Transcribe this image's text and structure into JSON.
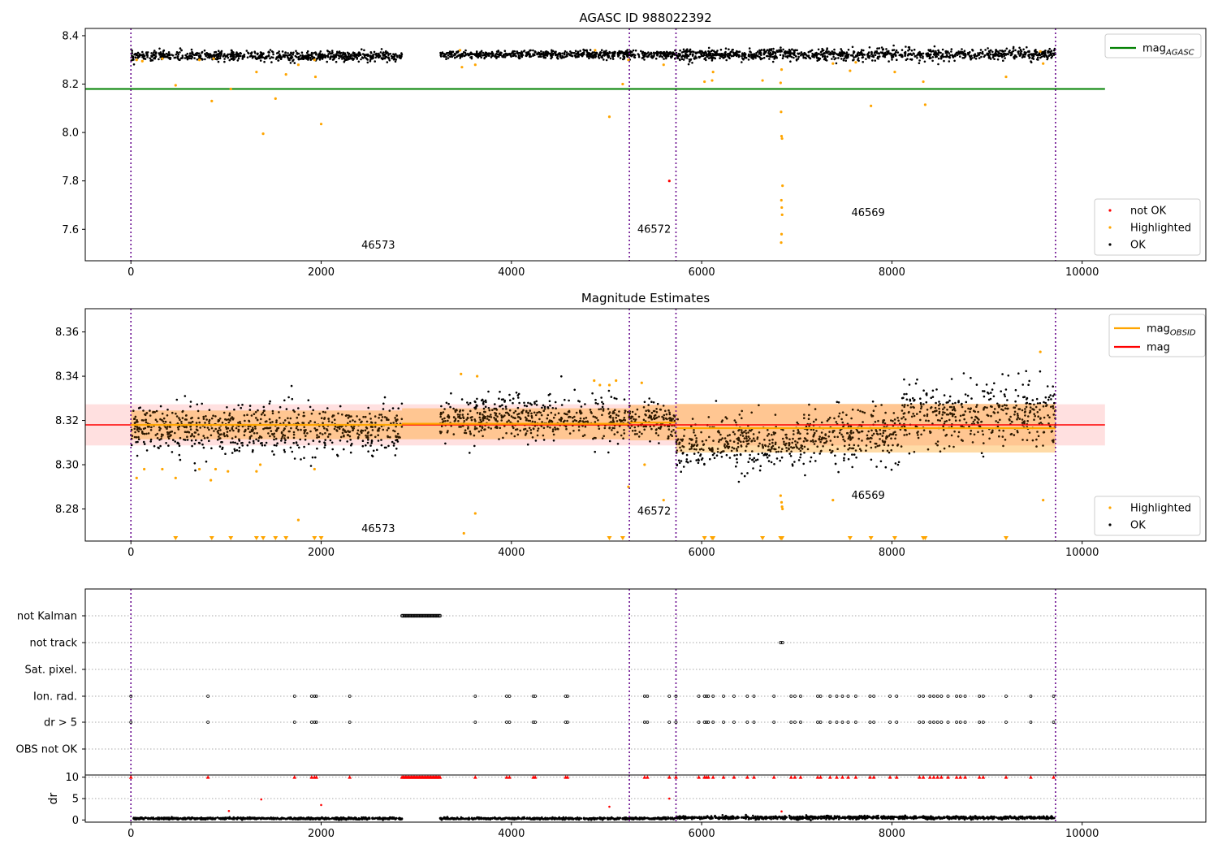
{
  "chart_data": [
    {
      "type": "scatter",
      "title": "AGASC ID 988022392",
      "xlim": [
        -480,
        11300
      ],
      "ylim": [
        7.47,
        8.43
      ],
      "xticks": [
        0,
        2000,
        4000,
        6000,
        8000,
        10000
      ],
      "yticks": [
        7.6,
        7.8,
        8.0,
        8.2,
        8.4
      ],
      "ytick_labels": [
        "7.6",
        "7.8",
        "8.0",
        "8.2",
        "8.4"
      ],
      "obsid_boundaries": [
        0,
        5240,
        5730,
        9720
      ],
      "obsid_labels": [
        {
          "text": "46573",
          "x": 2600,
          "y": 7.52
        },
        {
          "text": "46572",
          "x": 5500,
          "y": 7.585
        },
        {
          "text": "46569",
          "x": 7750,
          "y": 7.655
        }
      ],
      "ok_segments": [
        {
          "x": [
            0,
            2850
          ],
          "center": 8.316,
          "spread": 0.01
        },
        {
          "x": [
            3250,
            5730
          ],
          "center": 8.322,
          "spread": 0.008
        },
        {
          "x": [
            5730,
            9720
          ],
          "center": 8.322,
          "spread": 0.012
        }
      ],
      "highlighted": [
        [
          60,
          8.3
        ],
        [
          120,
          8.295
        ],
        [
          330,
          8.305
        ],
        [
          470,
          8.195
        ],
        [
          720,
          8.3
        ],
        [
          850,
          8.13
        ],
        [
          870,
          8.305
        ],
        [
          1050,
          8.18
        ],
        [
          1320,
          8.25
        ],
        [
          1390,
          7.995
        ],
        [
          1520,
          8.14
        ],
        [
          1630,
          8.24
        ],
        [
          1760,
          8.28
        ],
        [
          1930,
          8.3
        ],
        [
          1940,
          8.23
        ],
        [
          2000,
          8.035
        ],
        [
          3460,
          8.34
        ],
        [
          3480,
          8.27
        ],
        [
          3620,
          8.28
        ],
        [
          4880,
          8.34
        ],
        [
          5030,
          8.065
        ],
        [
          5170,
          8.2
        ],
        [
          5230,
          8.3
        ],
        [
          5600,
          8.28
        ],
        [
          6030,
          8.21
        ],
        [
          6110,
          8.215
        ],
        [
          6120,
          8.25
        ],
        [
          6640,
          8.215
        ],
        [
          6830,
          8.205
        ],
        [
          6840,
          8.26
        ],
        [
          6835,
          8.085
        ],
        [
          6840,
          7.985
        ],
        [
          6845,
          7.975
        ],
        [
          6850,
          7.78
        ],
        [
          6838,
          7.72
        ],
        [
          6842,
          7.69
        ],
        [
          6846,
          7.66
        ],
        [
          6840,
          7.58
        ],
        [
          6836,
          7.545
        ],
        [
          7380,
          8.285
        ],
        [
          7560,
          8.255
        ],
        [
          7620,
          8.29
        ],
        [
          7780,
          8.11
        ],
        [
          8030,
          8.25
        ],
        [
          8330,
          8.21
        ],
        [
          8350,
          8.115
        ],
        [
          9200,
          8.23
        ],
        [
          9560,
          8.335
        ],
        [
          9590,
          8.285
        ]
      ],
      "not_ok": [
        [
          5660,
          7.8
        ]
      ],
      "mag_agasc": {
        "value": 8.18,
        "x": [
          -480,
          10240
        ]
      },
      "legend_lines": [
        {
          "label": "mag",
          "sub": "AGASC",
          "color": "#008000"
        }
      ],
      "legend_points": [
        {
          "label": "not OK",
          "color": "#ff0000"
        },
        {
          "label": "Highlighted",
          "color": "#ffa500"
        },
        {
          "label": "OK",
          "color": "#000000"
        }
      ]
    },
    {
      "type": "scatter",
      "title": "Magnitude Estimates",
      "xlim": [
        -480,
        11300
      ],
      "ylim": [
        8.2655,
        8.3705
      ],
      "xticks": [
        0,
        2000,
        4000,
        6000,
        8000,
        10000
      ],
      "yticks": [
        8.28,
        8.3,
        8.32,
        8.34,
        8.36
      ],
      "ytick_labels": [
        "8.28",
        "8.30",
        "8.32",
        "8.34",
        "8.36"
      ],
      "obsid_boundaries": [
        0,
        5240,
        5730,
        9720
      ],
      "obsid_labels": [
        {
          "text": "46573",
          "x": 2600,
          "y": 8.2695
        },
        {
          "text": "46572",
          "x": 5500,
          "y": 8.2775
        },
        {
          "text": "46569",
          "x": 7750,
          "y": 8.2845
        }
      ],
      "ok_segments": [
        {
          "x": [
            0,
            2850
          ],
          "center": 8.316,
          "spread": 0.0055
        },
        {
          "x": [
            3250,
            5240
          ],
          "center": 8.321,
          "spread": 0.005
        },
        {
          "x": [
            5240,
            5730
          ],
          "center": 8.32,
          "spread": 0.004
        },
        {
          "x": [
            5730,
            7100
          ],
          "center": 8.309,
          "spread": 0.006
        },
        {
          "x": [
            7100,
            8100
          ],
          "center": 8.313,
          "spread": 0.006
        },
        {
          "x": [
            8100,
            9720
          ],
          "center": 8.323,
          "spread": 0.007
        }
      ],
      "highlighted": [
        [
          60,
          8.294
        ],
        [
          140,
          8.298
        ],
        [
          330,
          8.298
        ],
        [
          470,
          8.294
        ],
        [
          720,
          8.298
        ],
        [
          840,
          8.293
        ],
        [
          890,
          8.298
        ],
        [
          1020,
          8.297
        ],
        [
          1320,
          8.297
        ],
        [
          1360,
          8.3
        ],
        [
          1760,
          8.275
        ],
        [
          1930,
          8.298
        ],
        [
          3470,
          8.341
        ],
        [
          3500,
          8.269
        ],
        [
          3620,
          8.278
        ],
        [
          3640,
          8.34
        ],
        [
          4870,
          8.338
        ],
        [
          4930,
          8.336
        ],
        [
          5030,
          8.336
        ],
        [
          5100,
          8.338
        ],
        [
          5230,
          8.29
        ],
        [
          5370,
          8.337
        ],
        [
          5400,
          8.3
        ],
        [
          5600,
          8.284
        ],
        [
          6830,
          8.286
        ],
        [
          6840,
          8.283
        ],
        [
          6845,
          8.281
        ],
        [
          6850,
          8.28
        ],
        [
          7380,
          8.284
        ],
        [
          9560,
          8.351
        ],
        [
          9590,
          8.284
        ]
      ],
      "below_markers": [
        470,
        850,
        1050,
        1320,
        1390,
        1520,
        1630,
        1930,
        2000,
        5030,
        5170,
        6030,
        6110,
        6120,
        6640,
        6830,
        6840,
        6845,
        7560,
        7780,
        8030,
        8330,
        8350,
        9200
      ],
      "obsid_mags": [
        {
          "x": [
            0,
            2850
          ],
          "mean": 8.318,
          "std": 0.0065
        },
        {
          "x": [
            2850,
            5240
          ],
          "mean": 8.3185,
          "std": 0.007
        },
        {
          "x": [
            5240,
            5730
          ],
          "mean": 8.319,
          "std": 0.008
        },
        {
          "x": [
            5730,
            9720
          ],
          "mean": 8.3165,
          "std": 0.011
        }
      ],
      "mag": {
        "value": 8.318,
        "std": 0.0093,
        "x": [
          -480,
          10240
        ]
      },
      "legend_lines": [
        {
          "label": "mag",
          "sub": "OBSID",
          "color": "#ffa500"
        },
        {
          "label": "mag",
          "sub": "",
          "color": "#ff0000"
        }
      ],
      "legend_points": [
        {
          "label": "Highlighted",
          "color": "#ffa500"
        },
        {
          "label": "OK",
          "color": "#000000"
        }
      ]
    },
    {
      "type": "scatter",
      "title": "",
      "xlim": [
        -480,
        11300
      ],
      "categories": [
        "not Kalman",
        "not track",
        "Sat. pixel.",
        "Ion. rad.",
        "dr > 5",
        "OBS not OK"
      ],
      "obsid_boundaries": [
        0,
        5240,
        5730,
        9720
      ],
      "not_kalman": {
        "x": [
          2850,
          3250
        ],
        "n": 34
      },
      "not_track": [
        6830,
        6850
      ],
      "ion_rad": [
        0,
        810,
        1720,
        1900,
        1930,
        1950,
        2300,
        3620,
        3950,
        3980,
        4230,
        4250,
        4570,
        4590,
        5400,
        5430,
        5660,
        5730,
        5970,
        6030,
        6050,
        6070,
        6120,
        6230,
        6340,
        6480,
        6550,
        6760,
        6940,
        6980,
        7040,
        7220,
        7250,
        7350,
        7420,
        7480,
        7540,
        7620,
        7770,
        7810,
        7980,
        8050,
        8290,
        8330,
        8400,
        8440,
        8480,
        8520,
        8590,
        8680,
        8720,
        8770,
        8920,
        8960,
        9200,
        9460,
        9700
      ],
      "dr_gt_5": [
        0,
        810,
        1720,
        1900,
        1930,
        1950,
        2300,
        3620,
        3950,
        3980,
        4230,
        4250,
        4570,
        4590,
        5400,
        5430,
        5660,
        5730,
        5970,
        6030,
        6050,
        6070,
        6120,
        6230,
        6340,
        6480,
        6550,
        6760,
        6940,
        6980,
        7040,
        7220,
        7250,
        7350,
        7420,
        7480,
        7540,
        7620,
        7770,
        7810,
        7980,
        8050,
        8290,
        8330,
        8400,
        8440,
        8480,
        8520,
        8590,
        8680,
        8720,
        8770,
        8920,
        8960,
        9200,
        9460,
        9700
      ]
    },
    {
      "type": "scatter",
      "title": "",
      "ylabel": "dr",
      "xlim": [
        -480,
        11300
      ],
      "ylim": [
        -0.5,
        10.5
      ],
      "xticks": [
        0,
        2000,
        4000,
        6000,
        8000,
        10000
      ],
      "yticks": [
        0,
        5,
        10
      ],
      "ytick_labels": [
        "0",
        "5",
        "10"
      ],
      "obsid_boundaries": [
        0,
        5240,
        5730,
        9720
      ],
      "ok_segments": [
        {
          "x": [
            0,
            2850
          ],
          "center": 0.35,
          "spread": 0.12
        },
        {
          "x": [
            3250,
            5730
          ],
          "center": 0.35,
          "spread": 0.12
        },
        {
          "x": [
            5730,
            9720
          ],
          "center": 0.55,
          "spread": 0.18
        }
      ],
      "red_points": [
        [
          1030,
          2.1
        ],
        [
          1370,
          4.8
        ],
        [
          2000,
          3.5
        ],
        [
          5030,
          3.1
        ],
        [
          5660,
          5.0
        ],
        [
          6840,
          2.0
        ]
      ],
      "capped_markers": [
        0,
        810,
        1720,
        1900,
        1930,
        1950,
        2300,
        3620,
        3950,
        3980,
        4230,
        4250,
        4570,
        4590,
        5400,
        5430,
        5660,
        5730,
        5970,
        6030,
        6050,
        6070,
        6120,
        6230,
        6340,
        6480,
        6550,
        6760,
        6940,
        6980,
        7040,
        7220,
        7250,
        7350,
        7420,
        7480,
        7540,
        7620,
        7770,
        7810,
        7980,
        8050,
        8290,
        8330,
        8400,
        8440,
        8480,
        8520,
        8590,
        8680,
        8720,
        8770,
        8920,
        8960,
        9200,
        9460,
        9700
      ],
      "capped_run": {
        "x": [
          2850,
          3250
        ],
        "n": 34
      },
      "cap": 10
    }
  ]
}
